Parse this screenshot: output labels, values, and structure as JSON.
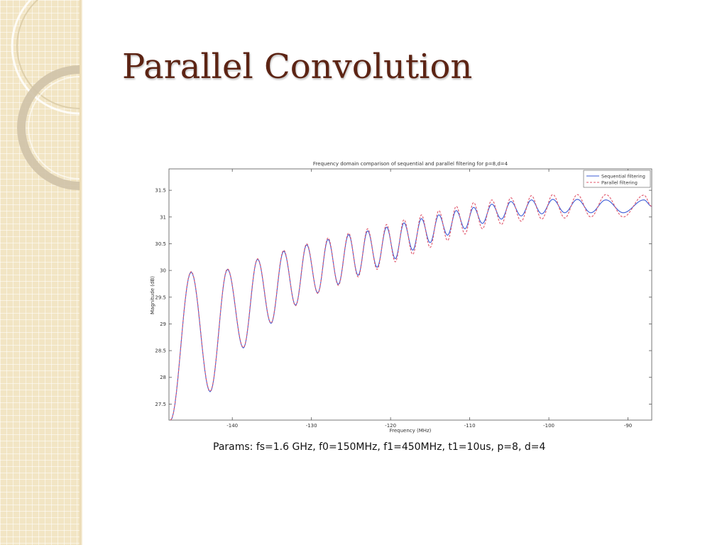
{
  "slide": {
    "title": "Parallel Convolution",
    "caption": "Params: fs=1.6 GHz, f0=150MHz,  f1=450MHz, t1=10us, p=8, d=4"
  },
  "colors": {
    "panel": "#f2e5c4",
    "title": "#5c2414",
    "sequential": "#3b5bd6",
    "parallel": "#e0556a"
  },
  "chart_data": {
    "type": "line",
    "title": "Frequency domain comparison of sequential and parallel filtering for p=8,d=4",
    "xlabel": "Frequency (MHz)",
    "ylabel": "Magnitude (dB)",
    "xlim": [
      -148,
      -87
    ],
    "ylim": [
      27.2,
      31.9
    ],
    "xticks": [
      -140,
      -130,
      -120,
      -110,
      -100,
      -90
    ],
    "yticks": [
      27.5,
      28,
      28.5,
      29,
      29.5,
      30,
      30.5,
      31,
      31.5
    ],
    "grid": false,
    "legend_position": "top-right",
    "series": [
      {
        "name": "Sequential filtering",
        "style": "solid",
        "color": "#3b5bd6",
        "x": [
          -147.8,
          -145.2,
          -142.8,
          -140.6,
          -138.6,
          -136.8,
          -135.1,
          -133.5,
          -132.0,
          -130.6,
          -129.2,
          -127.9,
          -126.6,
          -125.3,
          -124.1,
          -122.9,
          -121.7,
          -120.5,
          -119.4,
          -118.3,
          -117.2,
          -116.1,
          -115.0,
          -113.9,
          -112.8,
          -111.7,
          -110.6,
          -109.5,
          -108.4,
          -107.2,
          -106.0,
          -104.8,
          -103.5,
          -102.2,
          -100.9,
          -99.5,
          -98.0,
          -96.4,
          -94.7,
          -92.8,
          -90.6,
          -88.0,
          -87.0
        ],
        "y": [
          27.2,
          29.97,
          27.73,
          30.02,
          28.55,
          30.21,
          29.01,
          30.36,
          29.35,
          30.48,
          29.58,
          30.58,
          29.74,
          30.67,
          29.91,
          30.74,
          30.06,
          30.81,
          30.22,
          30.89,
          30.38,
          30.97,
          30.52,
          31.04,
          30.66,
          31.12,
          30.78,
          31.18,
          30.88,
          31.24,
          30.96,
          31.29,
          31.02,
          31.32,
          31.06,
          31.33,
          31.08,
          31.33,
          31.08,
          31.32,
          31.08,
          31.32,
          31.2
        ]
      },
      {
        "name": "Parallel filtering",
        "style": "dashed",
        "color": "#e0556a",
        "x": [
          -147.8,
          -145.2,
          -142.8,
          -140.6,
          -138.6,
          -136.8,
          -135.1,
          -133.5,
          -132.0,
          -130.6,
          -129.2,
          -127.9,
          -126.6,
          -125.3,
          -124.1,
          -122.9,
          -121.7,
          -120.5,
          -119.4,
          -118.3,
          -117.2,
          -116.1,
          -115.0,
          -113.9,
          -112.8,
          -111.7,
          -110.6,
          -109.5,
          -108.4,
          -107.2,
          -106.0,
          -104.8,
          -103.5,
          -102.2,
          -100.9,
          -99.5,
          -98.0,
          -96.4,
          -94.7,
          -92.8,
          -90.6,
          -88.0,
          -87.0
        ],
        "y": [
          27.2,
          29.98,
          27.74,
          30.03,
          28.56,
          30.22,
          29.02,
          30.38,
          29.34,
          30.5,
          29.57,
          30.61,
          29.72,
          30.7,
          29.88,
          30.78,
          30.02,
          30.86,
          30.16,
          30.95,
          30.3,
          31.04,
          30.43,
          31.12,
          30.56,
          31.2,
          30.68,
          31.27,
          30.78,
          31.32,
          30.86,
          31.36,
          30.92,
          31.4,
          30.96,
          31.42,
          30.98,
          31.42,
          31.0,
          31.42,
          31.0,
          31.41,
          31.2
        ]
      }
    ]
  }
}
